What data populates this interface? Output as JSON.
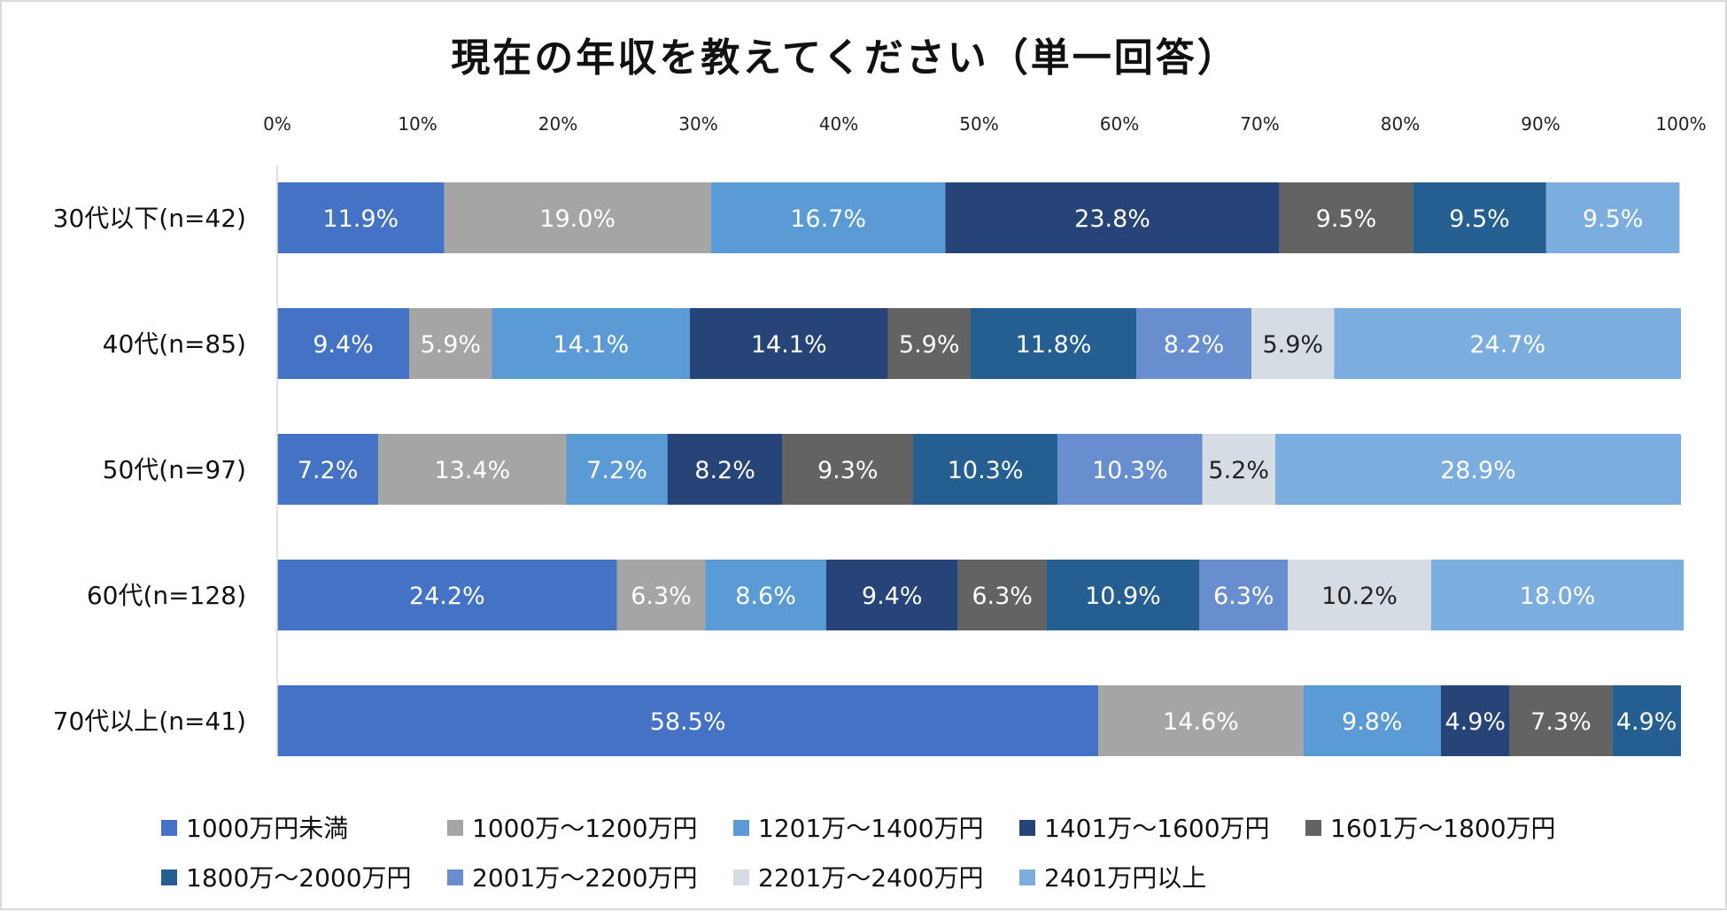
{
  "chart_data": {
    "type": "bar",
    "orientation": "horizontal",
    "stacked": "percent",
    "title": "現在の年収を教えてください（単一回答）",
    "xlim": [
      0,
      100
    ],
    "x_ticks": [
      "0%",
      "10%",
      "20%",
      "30%",
      "40%",
      "50%",
      "60%",
      "70%",
      "80%",
      "90%",
      "100%"
    ],
    "categories": [
      "30代以下(n=42)",
      "40代(n=85)",
      "50代(n=97)",
      "60代(n=128)",
      "70代以上(n=41)"
    ],
    "series": [
      {
        "name": "1000万円未満",
        "color": "#4472c4",
        "label_color": "#ffffff",
        "values": [
          11.9,
          9.4,
          7.2,
          24.2,
          58.5
        ]
      },
      {
        "name": "1000万～1200万円",
        "color": "#a5a5a5",
        "label_color": "#ffffff",
        "values": [
          19.0,
          5.9,
          13.4,
          6.3,
          14.6
        ]
      },
      {
        "name": "1201万～1400万円",
        "color": "#5b9bd5",
        "label_color": "#ffffff",
        "values": [
          16.7,
          14.1,
          7.2,
          8.6,
          9.8
        ]
      },
      {
        "name": "1401万～1600万円",
        "color": "#264478",
        "label_color": "#ffffff",
        "values": [
          23.8,
          14.1,
          8.2,
          9.4,
          4.9
        ]
      },
      {
        "name": "1601万～1800万円",
        "color": "#636363",
        "label_color": "#ffffff",
        "values": [
          9.5,
          5.9,
          9.3,
          6.3,
          7.3
        ]
      },
      {
        "name": "1800万～2000万円",
        "color": "#255e91",
        "label_color": "#ffffff",
        "values": [
          9.5,
          11.8,
          10.3,
          10.9,
          4.9
        ]
      },
      {
        "name": "2001万～2200万円",
        "color": "#698ed0",
        "label_color": "#ffffff",
        "values": [
          null,
          8.2,
          10.3,
          6.3,
          null
        ]
      },
      {
        "name": "2201万～2400万円",
        "color": "#d6dce4",
        "label_color": "#222222",
        "values": [
          null,
          5.9,
          5.2,
          10.2,
          null
        ]
      },
      {
        "name": "2401万円以上",
        "color": "#7caddf",
        "label_color": "#ffffff",
        "values": [
          9.5,
          24.7,
          28.9,
          18.0,
          null
        ]
      }
    ],
    "data_labels": [
      [
        "11.9%",
        "19.0%",
        "16.7%",
        "23.8%",
        "9.5%",
        "9.5%",
        null,
        null,
        "9.5%"
      ],
      [
        "9.4%",
        "5.9%",
        "14.1%",
        "14.1%",
        "5.9%",
        "11.8%",
        "8.2%",
        "5.9%",
        "24.7%"
      ],
      [
        "7.2%",
        "13.4%",
        "7.2%",
        "8.2%",
        "9.3%",
        "10.3%",
        "10.3%",
        "5.2%",
        "28.9%"
      ],
      [
        "24.2%",
        "6.3%",
        "8.6%",
        "9.4%",
        "6.3%",
        "10.9%",
        "6.3%",
        "10.2%",
        "18.0%"
      ],
      [
        "58.5%",
        "14.6%",
        "9.8%",
        "4.9%",
        "7.3%",
        "4.9%",
        null,
        null,
        null
      ]
    ],
    "legend_position": "bottom",
    "grid": false
  }
}
